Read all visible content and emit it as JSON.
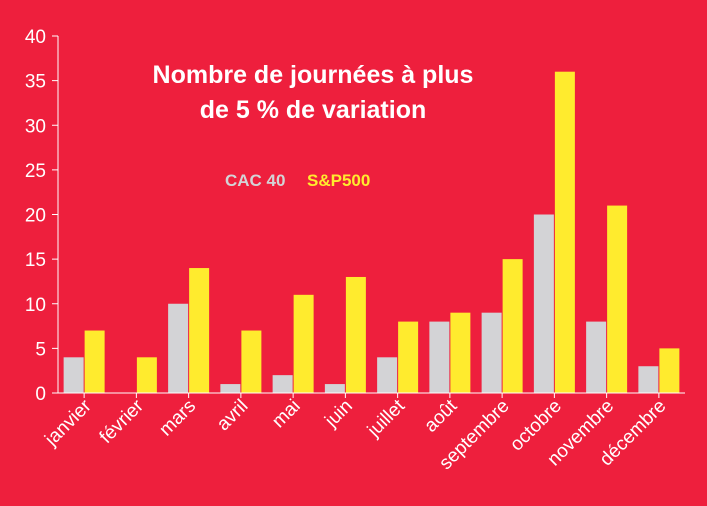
{
  "colors": {
    "background": "#EE1F3D",
    "cac40": "#D3D3D6",
    "sp500": "#FFEB2E",
    "text": "#FFFFFF"
  },
  "chart_data": {
    "type": "bar",
    "title_line1": "Nombre de journées à plus",
    "title_line2": "de 5 % de variation",
    "ylim": [
      0,
      40
    ],
    "yticks": [
      0,
      5,
      10,
      15,
      20,
      25,
      30,
      35,
      40
    ],
    "legend_position": "top-center",
    "grid": false,
    "categories": [
      "janvier",
      "février",
      "mars",
      "avril",
      "mai",
      "juin",
      "juillet",
      "août",
      "septembre",
      "octobre",
      "novembre",
      "décembre"
    ],
    "series": [
      {
        "name": "CAC 40",
        "color": "#D3D3D6",
        "values": [
          4,
          0,
          10,
          1,
          2,
          1,
          4,
          8,
          9,
          20,
          8,
          3
        ]
      },
      {
        "name": "S&P500",
        "color": "#FFEB2E",
        "values": [
          7,
          4,
          14,
          7,
          11,
          13,
          8,
          9,
          15,
          36,
          21,
          5
        ]
      }
    ]
  }
}
